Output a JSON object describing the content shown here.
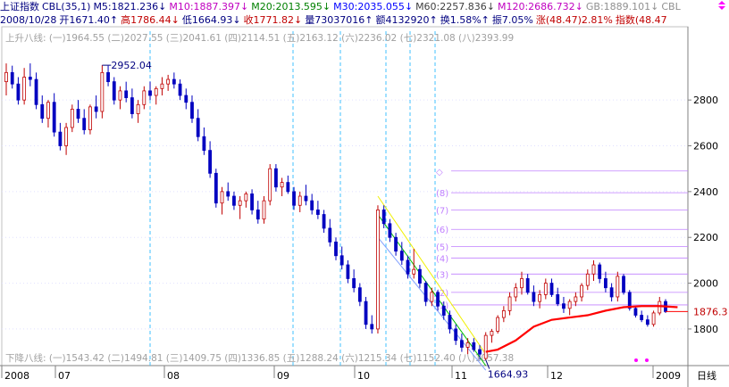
{
  "header": {
    "row1": [
      {
        "text": "上证指数",
        "color": "#000080"
      },
      {
        "text": "CBL(35,1)",
        "color": "#000080"
      },
      {
        "text": "M5:1821.236↓",
        "color": "#000080"
      },
      {
        "text": "M10:1887.397↓",
        "color": "#c000c0"
      },
      {
        "text": "M20:2013.595↓",
        "color": "#008000"
      },
      {
        "text": "M30:2035.055↓",
        "color": "#0000ff"
      },
      {
        "text": "M60:2257.836↓",
        "color": "#404040"
      },
      {
        "text": "M120:2686.732↓",
        "color": "#c000c0"
      },
      {
        "text": "GB:1889.101↓",
        "color": "#909090"
      },
      {
        "text": "CBL",
        "color": "#909090"
      }
    ],
    "row2": [
      {
        "text": "2008/10/28",
        "color": "#000080"
      },
      {
        "text": "开1671.40↑",
        "color": "#000080"
      },
      {
        "text": "高1786.44↓",
        "color": "#c00000"
      },
      {
        "text": "低1664.93↓",
        "color": "#000080"
      },
      {
        "text": "收1771.82↓",
        "color": "#c00000"
      },
      {
        "text": "量73037016↑",
        "color": "#000080"
      },
      {
        "text": "额4132920↑",
        "color": "#000080"
      },
      {
        "text": "换1.58%↑",
        "color": "#000080"
      },
      {
        "text": "振7.05%",
        "color": "#000080"
      },
      {
        "text": "涨(48.47)2.81%",
        "color": "#c00000"
      },
      {
        "text": "指数(48.47",
        "color": "#c00000"
      }
    ]
  },
  "upper_label_row": "上升八线: (一)1964.55 (二)2027.55 (三)2041.61 (四)2114.51 (五)2163.12 (六)2236.02 (七)2321.08 (八)2393.99",
  "lower_label_row": "下降八线: (一)1543.42 (二)1494.81 (三)1409.75 (四)1336.85 (五)1288.24 (六)1215.34 (七)1152.40 (八)1057.38",
  "high_label": "2952.04",
  "low_label": "1664.93",
  "last_price_label": "1876.3",
  "time_axis_label": "日线",
  "colors": {
    "up": "#c00000",
    "down": "#0000c0",
    "ma": "#ff0000",
    "grid": "#a0a0ff",
    "dash_v": "#40c0ff",
    "fib": "#c080ff",
    "axis_text": "#000000",
    "tri_yellow": "#f0f000",
    "tri_green": "#00c000",
    "tri_blue": "#80a0ff",
    "dots": "#ff00ff"
  },
  "chart_data": {
    "type": "candlestick",
    "ylim": [
      1640,
      3120
    ],
    "y_ticks": [
      1800,
      2000,
      2200,
      2400,
      2600,
      2800
    ],
    "x_labels": [
      "2008",
      "07",
      "08",
      "09",
      "10",
      "11",
      "12",
      "2009"
    ],
    "fib_levels": [
      {
        "label": "(1)",
        "value": 1905
      },
      {
        "label": "(2)",
        "value": 1960
      },
      {
        "label": "(3)",
        "value": 2040
      },
      {
        "label": "(4)",
        "value": 2110
      },
      {
        "label": "(5)",
        "value": 2160
      },
      {
        "label": "(6)",
        "value": 2235
      },
      {
        "label": "(7)",
        "value": 2320
      },
      {
        "label": "(8)",
        "value": 2395
      },
      {
        "label": "◇",
        "value": 2490
      }
    ],
    "ohlc": [
      [
        2880,
        2960,
        2820,
        2920
      ],
      [
        2920,
        2950,
        2850,
        2870
      ],
      [
        2870,
        2900,
        2780,
        2800
      ],
      [
        2800,
        2940,
        2780,
        2900
      ],
      [
        2900,
        2960,
        2860,
        2890
      ],
      [
        2890,
        2920,
        2760,
        2780
      ],
      [
        2780,
        2820,
        2700,
        2720
      ],
      [
        2720,
        2800,
        2680,
        2790
      ],
      [
        2790,
        2830,
        2640,
        2660
      ],
      [
        2660,
        2700,
        2580,
        2600
      ],
      [
        2600,
        2700,
        2560,
        2680
      ],
      [
        2680,
        2780,
        2660,
        2760
      ],
      [
        2760,
        2800,
        2700,
        2720
      ],
      [
        2720,
        2760,
        2650,
        2670
      ],
      [
        2670,
        2780,
        2650,
        2770
      ],
      [
        2770,
        2820,
        2720,
        2750
      ],
      [
        2750,
        2952,
        2720,
        2920
      ],
      [
        2920,
        2950,
        2860,
        2880
      ],
      [
        2880,
        2900,
        2780,
        2800
      ],
      [
        2800,
        2860,
        2760,
        2840
      ],
      [
        2840,
        2880,
        2790,
        2810
      ],
      [
        2810,
        2850,
        2720,
        2740
      ],
      [
        2740,
        2800,
        2700,
        2780
      ],
      [
        2780,
        2860,
        2760,
        2840
      ],
      [
        2840,
        2880,
        2800,
        2820
      ],
      [
        2820,
        2860,
        2780,
        2850
      ],
      [
        2850,
        2900,
        2820,
        2870
      ],
      [
        2870,
        2910,
        2840,
        2890
      ],
      [
        2890,
        2920,
        2850,
        2870
      ],
      [
        2870,
        2890,
        2800,
        2820
      ],
      [
        2820,
        2850,
        2760,
        2790
      ],
      [
        2790,
        2820,
        2700,
        2720
      ],
      [
        2720,
        2760,
        2620,
        2640
      ],
      [
        2640,
        2680,
        2560,
        2580
      ],
      [
        2580,
        2620,
        2460,
        2480
      ],
      [
        2480,
        2500,
        2330,
        2350
      ],
      [
        2350,
        2420,
        2300,
        2400
      ],
      [
        2400,
        2440,
        2360,
        2380
      ],
      [
        2380,
        2400,
        2320,
        2340
      ],
      [
        2340,
        2380,
        2280,
        2360
      ],
      [
        2360,
        2400,
        2330,
        2390
      ],
      [
        2390,
        2410,
        2300,
        2320
      ],
      [
        2320,
        2360,
        2260,
        2280
      ],
      [
        2280,
        2380,
        2260,
        2360
      ],
      [
        2360,
        2520,
        2340,
        2500
      ],
      [
        2500,
        2520,
        2400,
        2420
      ],
      [
        2420,
        2460,
        2380,
        2440
      ],
      [
        2440,
        2470,
        2390,
        2400
      ],
      [
        2400,
        2420,
        2320,
        2340
      ],
      [
        2340,
        2400,
        2310,
        2380
      ],
      [
        2380,
        2430,
        2340,
        2360
      ],
      [
        2360,
        2390,
        2300,
        2320
      ],
      [
        2320,
        2360,
        2280,
        2300
      ],
      [
        2300,
        2320,
        2220,
        2240
      ],
      [
        2240,
        2280,
        2160,
        2180
      ],
      [
        2180,
        2200,
        2100,
        2120
      ],
      [
        2120,
        2160,
        2060,
        2080
      ],
      [
        2080,
        2100,
        2000,
        2020
      ],
      [
        2020,
        2060,
        1960,
        1980
      ],
      [
        1980,
        2000,
        1900,
        1920
      ],
      [
        1920,
        1940,
        1800,
        1820
      ],
      [
        1820,
        1860,
        1780,
        1800
      ],
      [
        1800,
        2340,
        1780,
        2320
      ],
      [
        2320,
        2340,
        2240,
        2260
      ],
      [
        2260,
        2280,
        2180,
        2200
      ],
      [
        2200,
        2220,
        2120,
        2140
      ],
      [
        2140,
        2180,
        2080,
        2100
      ],
      [
        2100,
        2120,
        2020,
        2040
      ],
      [
        2040,
        2150,
        2020,
        2060
      ],
      [
        2060,
        2080,
        1980,
        2000
      ],
      [
        2000,
        2010,
        1900,
        1920
      ],
      [
        1920,
        1980,
        1900,
        1960
      ],
      [
        1960,
        1970,
        1880,
        1900
      ],
      [
        1900,
        1920,
        1840,
        1860
      ],
      [
        1860,
        1880,
        1780,
        1800
      ],
      [
        1800,
        1820,
        1730,
        1750
      ],
      [
        1750,
        1780,
        1700,
        1720
      ],
      [
        1720,
        1760,
        1690,
        1740
      ],
      [
        1740,
        1760,
        1700,
        1710
      ],
      [
        1710,
        1730,
        1665,
        1690
      ],
      [
        1671,
        1786,
        1665,
        1772
      ],
      [
        1772,
        1800,
        1740,
        1790
      ],
      [
        1790,
        1860,
        1780,
        1850
      ],
      [
        1850,
        1900,
        1830,
        1880
      ],
      [
        1880,
        1960,
        1860,
        1940
      ],
      [
        1940,
        2000,
        1920,
        1980
      ],
      [
        1980,
        2050,
        1950,
        2020
      ],
      [
        2020,
        2040,
        1950,
        1960
      ],
      [
        1960,
        1990,
        1900,
        1920
      ],
      [
        1920,
        1970,
        1890,
        1950
      ],
      [
        1950,
        2020,
        1930,
        2000
      ],
      [
        2000,
        2020,
        1940,
        1950
      ],
      [
        1950,
        1980,
        1900,
        1910
      ],
      [
        1910,
        1940,
        1870,
        1890
      ],
      [
        1890,
        1930,
        1860,
        1920
      ],
      [
        1920,
        1960,
        1900,
        1940
      ],
      [
        1940,
        2000,
        1920,
        1990
      ],
      [
        1990,
        2060,
        1970,
        2040
      ],
      [
        2040,
        2100,
        2010,
        2080
      ],
      [
        2080,
        2090,
        2000,
        2020
      ],
      [
        2020,
        2050,
        1960,
        1980
      ],
      [
        1980,
        2000,
        1920,
        1940
      ],
      [
        1940,
        2050,
        1920,
        2030
      ],
      [
        2030,
        2040,
        1950,
        1960
      ],
      [
        1960,
        1970,
        1880,
        1890
      ],
      [
        1890,
        1900,
        1850,
        1860
      ],
      [
        1860,
        1880,
        1830,
        1840
      ],
      [
        1840,
        1860,
        1810,
        1820
      ],
      [
        1820,
        1880,
        1810,
        1870
      ],
      [
        1870,
        1940,
        1860,
        1920
      ],
      [
        1920,
        1930,
        1870,
        1876
      ]
    ],
    "ma_line": [
      {
        "i": 80,
        "v": 1700
      },
      {
        "i": 82,
        "v": 1710
      },
      {
        "i": 85,
        "v": 1750
      },
      {
        "i": 88,
        "v": 1810
      },
      {
        "i": 91,
        "v": 1840
      },
      {
        "i": 94,
        "v": 1850
      },
      {
        "i": 97,
        "v": 1860
      },
      {
        "i": 100,
        "v": 1880
      },
      {
        "i": 103,
        "v": 1895
      },
      {
        "i": 106,
        "v": 1900
      },
      {
        "i": 109,
        "v": 1900
      },
      {
        "i": 112,
        "v": 1895
      }
    ]
  }
}
